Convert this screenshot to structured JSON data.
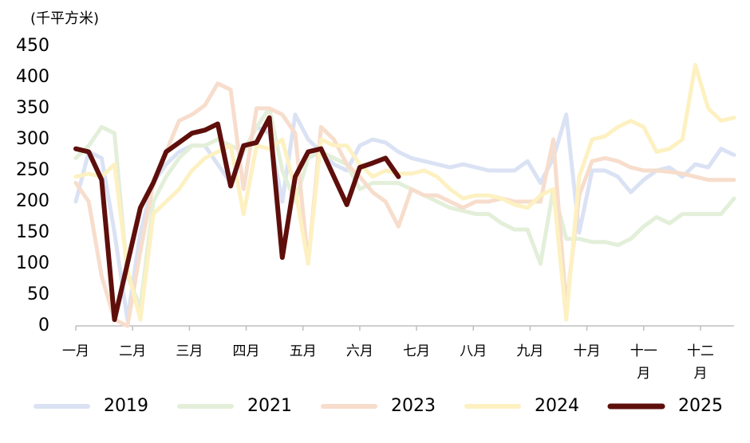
{
  "chart_data": {
    "type": "line",
    "y_label": "(千平方米)",
    "x": [
      0,
      1,
      2,
      3,
      4,
      5,
      6,
      7,
      8,
      9,
      10,
      11,
      12,
      13,
      14,
      15,
      16,
      17,
      18,
      19,
      20,
      21,
      22,
      23,
      24,
      25,
      26,
      27,
      28,
      29,
      30,
      31,
      32,
      33,
      34,
      35,
      36,
      37,
      38,
      39,
      40,
      41,
      42,
      43,
      44,
      45,
      46,
      47,
      48,
      49,
      50,
      51
    ],
    "xlim": [
      0,
      51
    ],
    "xticks": [
      {
        "value": 0,
        "label": "一月"
      },
      {
        "value": 4.4,
        "label": "二月"
      },
      {
        "value": 8.8,
        "label": "三月"
      },
      {
        "value": 13.2,
        "label": "四月"
      },
      {
        "value": 17.6,
        "label": "五月"
      },
      {
        "value": 22,
        "label": "六月"
      },
      {
        "value": 26.4,
        "label": "七月"
      },
      {
        "value": 30.8,
        "label": "八月"
      },
      {
        "value": 35.2,
        "label": "九月"
      },
      {
        "value": 39.6,
        "label": "十月"
      },
      {
        "value": 44,
        "label": "十一月"
      },
      {
        "value": 48.4,
        "label": "十二月"
      }
    ],
    "ylim": [
      0,
      450
    ],
    "yticks": [
      0,
      50,
      100,
      150,
      200,
      250,
      300,
      350,
      400,
      450
    ],
    "legend": "bottom",
    "series": [
      {
        "name": "2019",
        "color": "#dae2f4",
        "values": [
          200,
          280,
          270,
          150,
          10,
          150,
          230,
          260,
          280,
          290,
          290,
          260,
          230,
          280,
          320,
          310,
          200,
          340,
          300,
          280,
          260,
          250,
          290,
          300,
          295,
          280,
          270,
          265,
          260,
          255,
          260,
          255,
          250,
          250,
          250,
          265,
          230,
          270,
          340,
          150,
          250,
          250,
          240,
          215,
          235,
          250,
          255,
          240,
          260,
          255,
          285,
          275
        ]
      },
      {
        "name": "2021",
        "color": "#e3efd9",
        "values": [
          270,
          290,
          320,
          310,
          80,
          30,
          200,
          240,
          270,
          290,
          290,
          300,
          290,
          280,
          320,
          350,
          250,
          200,
          270,
          280,
          270,
          260,
          220,
          230,
          230,
          230,
          220,
          210,
          200,
          190,
          185,
          180,
          180,
          165,
          155,
          155,
          100,
          220,
          140,
          140,
          135,
          135,
          130,
          140,
          160,
          175,
          165,
          180,
          180,
          180,
          180,
          205
        ]
      },
      {
        "name": "2023",
        "color": "#f7ddcc",
        "values": [
          230,
          200,
          80,
          10,
          0,
          120,
          230,
          280,
          330,
          340,
          355,
          390,
          380,
          220,
          350,
          350,
          340,
          310,
          100,
          320,
          300,
          260,
          240,
          215,
          200,
          160,
          220,
          210,
          210,
          200,
          190,
          200,
          200,
          205,
          200,
          200,
          200,
          300,
          30,
          210,
          265,
          270,
          265,
          255,
          250,
          250,
          248,
          245,
          240,
          235,
          235,
          235
        ]
      },
      {
        "name": "2024",
        "color": "#fdf1c2",
        "values": [
          240,
          245,
          240,
          260,
          90,
          10,
          180,
          200,
          220,
          250,
          270,
          280,
          290,
          180,
          290,
          285,
          300,
          220,
          100,
          300,
          290,
          290,
          260,
          240,
          250,
          245,
          245,
          250,
          240,
          220,
          205,
          210,
          210,
          205,
          195,
          190,
          210,
          220,
          10,
          240,
          300,
          305,
          320,
          330,
          320,
          280,
          285,
          300,
          420,
          350,
          330,
          335
        ]
      },
      {
        "name": "2025",
        "color": "#5e0f0c",
        "values": [
          285,
          280,
          235,
          10,
          100,
          190,
          230,
          280,
          295,
          310,
          315,
          325,
          225,
          290,
          295,
          335,
          110,
          240,
          280,
          285,
          240,
          195,
          255,
          262,
          270,
          240,
          null,
          null,
          null,
          null,
          null,
          null,
          null,
          null,
          null,
          null,
          null,
          null,
          null,
          null,
          null,
          null,
          null,
          null,
          null,
          null,
          null,
          null,
          null,
          null,
          null,
          null
        ]
      }
    ]
  }
}
